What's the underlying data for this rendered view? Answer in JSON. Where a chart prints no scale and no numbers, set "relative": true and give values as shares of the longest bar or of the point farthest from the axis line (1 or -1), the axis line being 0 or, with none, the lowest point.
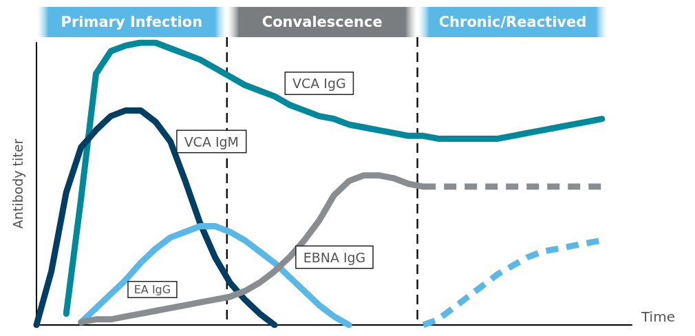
{
  "chart_data": {
    "type": "line",
    "relative": true,
    "xlabel": "Time",
    "ylabel": "Antibody titer",
    "grid": false,
    "marker": "none",
    "line_style": "solid",
    "categories": [
      null,
      null,
      null,
      null,
      null,
      null,
      null,
      null,
      null,
      null,
      null,
      null,
      null,
      null,
      null,
      null,
      null,
      null,
      null,
      null,
      null,
      null,
      null,
      null,
      null,
      null,
      null,
      null,
      null,
      null,
      null,
      null,
      null,
      null,
      null,
      null,
      null,
      null,
      null,
      null,
      null
    ],
    "series": [
      {
        "name": "VCA IgG",
        "color": "#00899a",
        "values": [
          null,
          null,
          0.04,
          0.45,
          0.89,
          0.97,
          0.99,
          1,
          1,
          0.98,
          0.96,
          0.94,
          0.91,
          0.88,
          0.85,
          0.83,
          0.81,
          0.78,
          0.76,
          0.74,
          0.73,
          0.71,
          0.7,
          0.69,
          0.68,
          0.67,
          0.67,
          0.66,
          0.66,
          0.66,
          0.66,
          0.66,
          0.67,
          0.68,
          0.69,
          0.7,
          0.71,
          0.72,
          0.73,
          null,
          null
        ]
      },
      {
        "name": "VCA IgM",
        "color": "#003f63",
        "values": [
          0,
          0.19,
          0.47,
          0.63,
          0.69,
          0.74,
          0.76,
          0.76,
          0.72,
          0.65,
          0.51,
          0.36,
          0.24,
          0.15,
          0.09,
          0.04,
          0,
          null,
          null,
          null,
          null,
          null,
          null,
          null,
          null,
          null,
          null,
          null,
          null,
          null,
          null,
          null,
          null,
          null,
          null,
          null,
          null,
          null,
          null,
          null,
          null
        ]
      },
      {
        "name": "EA IgG",
        "color": "#5ab8e6",
        "values": [
          null,
          null,
          null,
          0.01,
          0.06,
          0.11,
          0.16,
          0.22,
          0.27,
          0.31,
          0.33,
          0.35,
          0.35,
          0.33,
          0.3,
          0.26,
          0.22,
          0.17,
          0.12,
          0.07,
          0.03,
          0,
          null,
          null,
          null,
          null,
          null,
          null,
          null,
          null,
          null,
          null,
          null,
          null,
          null,
          null,
          null,
          null,
          null,
          null,
          null
        ]
      },
      {
        "name": "EBNA IgG",
        "color": "#8a8d8f",
        "values": [
          null,
          null,
          null,
          0.01,
          0.02,
          0.02,
          0.03,
          0.04,
          0.05,
          0.06,
          0.07,
          0.08,
          0.09,
          0.1,
          0.12,
          0.15,
          0.19,
          0.24,
          0.3,
          0.37,
          0.46,
          0.51,
          0.53,
          0.53,
          0.52,
          0.5,
          0.49,
          null,
          null,
          null,
          null,
          null,
          null,
          null,
          null,
          null,
          null,
          null,
          null,
          null,
          null
        ]
      },
      {
        "color": "#5ab8e6",
        "line_style": "dashed",
        "values": [
          null,
          null,
          null,
          null,
          null,
          null,
          null,
          null,
          null,
          null,
          null,
          null,
          null,
          null,
          null,
          null,
          null,
          null,
          null,
          null,
          null,
          null,
          null,
          null,
          null,
          null,
          0,
          0.02,
          0.06,
          0.1,
          0.14,
          0.18,
          0.21,
          0.24,
          0.26,
          0.27,
          0.28,
          0.29,
          0.3,
          null,
          null
        ]
      },
      {
        "color": "#8a8d8f",
        "line_style": "dashed",
        "values": [
          null,
          null,
          null,
          null,
          null,
          null,
          null,
          null,
          null,
          null,
          null,
          null,
          null,
          null,
          null,
          null,
          null,
          null,
          null,
          null,
          null,
          null,
          null,
          null,
          null,
          null,
          0.49,
          0.49,
          0.49,
          0.49,
          0.49,
          0.49,
          0.49,
          0.49,
          0.49,
          0.49,
          0.49,
          0.49,
          0.49,
          null,
          null
        ]
      }
    ],
    "annotations": [
      "Primary Infection",
      "Convalescence",
      "Chronic/Reactived"
    ]
  }
}
